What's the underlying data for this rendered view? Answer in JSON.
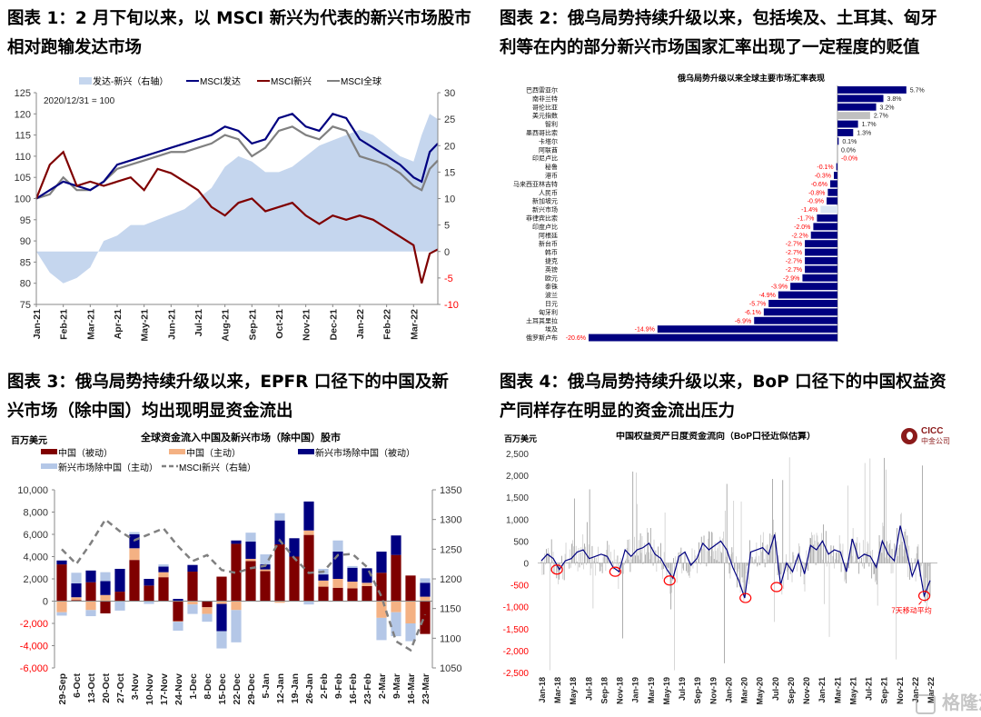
{
  "panels": {
    "p1": {
      "title_line1": "图表 1：2 月下旬以来，以 MSCI 新兴为代表的新兴市场股市",
      "title_line2": "相对跑输发达市场"
    },
    "p2": {
      "title_line1": "图表 2：俄乌局势持续升级以来，包括埃及、土耳其、匈牙",
      "title_line2": "利等在内的部分新兴市场国家汇率出现了一定程度的贬值"
    },
    "p3": {
      "title_line1": "图表 3：俄乌局势持续升级以来，EPFR 口径下的中国及新",
      "title_line2": "兴市场（除中国）均出现明显资金流出"
    },
    "p4": {
      "title_line1": "图表 4：俄乌局势持续升级以来，BoP 口径下的中国权益资",
      "title_line2": "产同样存在明显的资金流出压力"
    }
  },
  "logo": {
    "text_en": "CICC",
    "text_cn": "中金公司"
  },
  "watermark": "格隆汇",
  "colors": {
    "navy": "#000080",
    "darkred": "#7f0000",
    "gray": "#808080",
    "lightblue": "#c5d6ee",
    "salmon": "#f4b183",
    "paleblue": "#b4c7e7",
    "red": "#ff0000"
  },
  "chart_data": [
    {
      "type": "line",
      "title": "",
      "annotation": "2020/12/31 = 100",
      "legend": [
        "发达-新兴（右轴）",
        "MSCI发达",
        "MSCI新兴",
        "MSCI全球"
      ],
      "x_ticks": [
        "Jan-21",
        "Feb-21",
        "Mar-21",
        "Apr-21",
        "May-21",
        "Jun-21",
        "Jul-21",
        "Aug-21",
        "Sep-21",
        "Oct-21",
        "Nov-21",
        "Dec-21",
        "Jan-22",
        "Feb-22",
        "Mar-22"
      ],
      "ylim": [
        75,
        125
      ],
      "y_ticks": [
        75,
        80,
        85,
        90,
        95,
        100,
        105,
        110,
        115,
        120,
        125
      ],
      "y2lim": [
        -10,
        30
      ],
      "y2_ticks": [
        -10,
        -5,
        0,
        5,
        10,
        15,
        20,
        25,
        30
      ],
      "x": [
        0,
        0.5,
        1,
        1.5,
        2,
        2.5,
        3,
        3.5,
        4,
        4.5,
        5,
        5.5,
        6,
        6.5,
        7,
        7.5,
        8,
        8.5,
        9,
        9.5,
        10,
        10.5,
        11,
        11.5,
        12,
        12.5,
        13,
        13.5,
        14,
        14.3,
        14.6,
        14.9
      ],
      "series": [
        {
          "name": "发达-新兴（右轴）",
          "axis": "right",
          "values": [
            0,
            -4,
            -6,
            -5,
            -3,
            2,
            3,
            5,
            5,
            6,
            7,
            8,
            10,
            12,
            16,
            18,
            17,
            15,
            15,
            16,
            18,
            20,
            21,
            22,
            23,
            22,
            20,
            18,
            17,
            22,
            26,
            25
          ]
        },
        {
          "name": "MSCI发达",
          "axis": "left",
          "values": [
            100,
            102,
            104,
            103,
            102,
            104,
            108,
            109,
            110,
            111,
            112,
            113,
            114,
            115,
            117,
            116,
            113,
            114,
            119,
            120,
            117,
            116,
            120,
            119,
            114,
            112,
            110,
            108,
            105,
            104,
            111,
            113
          ]
        },
        {
          "name": "MSCI新兴",
          "axis": "left",
          "values": [
            100,
            108,
            111,
            103,
            104,
            103,
            104,
            105,
            102,
            107,
            106,
            104,
            102,
            98,
            96,
            99,
            100,
            97,
            98,
            99,
            96,
            94,
            96,
            95,
            96,
            95,
            93,
            91,
            89,
            80,
            87,
            88
          ]
        },
        {
          "name": "MSCI全球",
          "axis": "left",
          "values": [
            100,
            101,
            105,
            102,
            102,
            104,
            107,
            108,
            109,
            110,
            111,
            111,
            112,
            113,
            115,
            114,
            110,
            112,
            116,
            117,
            115,
            114,
            117,
            116,
            110,
            109,
            108,
            106,
            103,
            102,
            107,
            109
          ]
        }
      ]
    },
    {
      "type": "bar",
      "orientation": "horizontal",
      "title": "俄乌局势升级以来全球主要市场汇率表现",
      "categories": [
        "巴西雷亚尔",
        "南非兰特",
        "哥伦比亚",
        "美元指数",
        "智利",
        "墨西哥比索",
        "卡塔尔",
        "阿联酋",
        "印尼卢比",
        "秘鲁",
        "港币",
        "马来西亚林吉特",
        "人民币",
        "新加坡元",
        "新兴市场",
        "菲律宾比索",
        "印度卢比",
        "阿根廷",
        "新台币",
        "韩币",
        "捷克",
        "英镑",
        "欧元",
        "泰铢",
        "波兰",
        "日元",
        "匈牙利",
        "土耳其里拉",
        "埃及",
        "俄罗斯卢布"
      ],
      "values": [
        5.7,
        3.8,
        3.2,
        2.7,
        1.7,
        1.3,
        0.1,
        0.0,
        -0.0,
        -0.1,
        -0.3,
        -0.6,
        -0.8,
        -0.9,
        -1.4,
        -1.7,
        -2.0,
        -2.2,
        -2.7,
        -2.7,
        -2.7,
        -2.7,
        -2.9,
        -3.9,
        -4.9,
        -5.7,
        -6.1,
        -6.9,
        -14.9,
        -20.6
      ],
      "labels": [
        "5.7%",
        "3.8%",
        "3.2%",
        "2.7%",
        "1.7%",
        "1.3%",
        "0.1%",
        "0.0%",
        "-0.0%",
        "-0.1%",
        "-0.3%",
        "-0.6%",
        "-0.8%",
        "-0.9%",
        "-1.4%",
        "-1.7%",
        "-2.0%",
        "-2.2%",
        "-2.7%",
        "-2.7%",
        "-2.7%",
        "-2.7%",
        "-2.9%",
        "-3.9%",
        "-4.9%",
        "-5.7%",
        "-6.1%",
        "-6.9%",
        "-14.9%",
        "-20.6%"
      ],
      "highlight": {
        "美元指数": "#c0c0c0",
        "新兴市场": "#dce6f2"
      },
      "xlim": [
        -21,
        6
      ]
    },
    {
      "type": "bar",
      "stacked": true,
      "title": "全球资金流入中国及新兴市场（除中国）股市",
      "ylabel": "百万美元",
      "categories": [
        "29-Sep",
        "6-Oct",
        "13-Oct",
        "20-Oct",
        "27-Oct",
        "3-Nov",
        "10-Nov",
        "17-Nov",
        "24-Nov",
        "1-Dec",
        "8-Dec",
        "15-Dec",
        "22-Dec",
        "29-Dec",
        "5-Jan",
        "12-Jan",
        "19-Jan",
        "26-Jan",
        "2-Feb",
        "9-Feb",
        "16-Feb",
        "23-Feb",
        "2-Mar",
        "9-Mar",
        "16-Mar",
        "23-Mar"
      ],
      "ylim": [
        -6000,
        10000
      ],
      "y_ticks": [
        "10,000",
        "8,000",
        "6,000",
        "4,000",
        "2,000",
        "0",
        "-2,000",
        "-4,000",
        "-6,000"
      ],
      "y_tick_values": [
        10000,
        8000,
        6000,
        4000,
        2000,
        0,
        -2000,
        -4000,
        -6000
      ],
      "y2lim": [
        1050,
        1350
      ],
      "y2_ticks": [
        1350,
        1300,
        1250,
        1200,
        1150,
        1100,
        1050
      ],
      "legend": [
        "中国（被动）",
        "中国（主动）",
        "新兴市场除中国（被动）",
        "新兴市场除中国（主动）",
        "MSCI新兴（右轴）"
      ],
      "series": [
        {
          "name": "中国（被动）",
          "values": [
            3300,
            100,
            1700,
            -1100,
            850,
            3700,
            1400,
            2150,
            -1800,
            2650,
            -550,
            2200,
            5150,
            3600,
            2700,
            5100,
            4000,
            5950,
            1300,
            1200,
            1150,
            1350,
            2550,
            4150,
            2300,
            -2950
          ]
        },
        {
          "name": "中国（主动）",
          "values": [
            -1000,
            250,
            -800,
            550,
            0,
            1050,
            0,
            450,
            -50,
            -300,
            -600,
            -250,
            -800,
            200,
            150,
            -150,
            0,
            400,
            550,
            800,
            600,
            300,
            -1500,
            -1000,
            -2000,
            400
          ]
        },
        {
          "name": "新兴市场除中国（被动）",
          "values": [
            350,
            1250,
            1050,
            1250,
            2050,
            1250,
            600,
            500,
            200,
            600,
            0,
            -2450,
            300,
            1550,
            450,
            2150,
            1650,
            2600,
            550,
            2450,
            1250,
            1300,
            1900,
            1750,
            0,
            1250
          ]
        },
        {
          "name": "新兴市场除中国（主动）",
          "values": [
            -300,
            950,
            -550,
            800,
            -850,
            200,
            -250,
            200,
            -800,
            -850,
            -700,
            -1550,
            -2900,
            800,
            900,
            650,
            0,
            -300,
            500,
            1000,
            150,
            0,
            -2000,
            -2150,
            -1600,
            400
          ]
        },
        {
          "name": "MSCI新兴（右轴）",
          "axis": "right",
          "values": [
            1250,
            1225,
            1260,
            1300,
            1280,
            1265,
            1275,
            1285,
            1255,
            1230,
            1240,
            1215,
            1210,
            1218,
            1222,
            1265,
            1235,
            1210,
            1212,
            1240,
            1242,
            1220,
            1170,
            1095,
            1080,
            1140
          ]
        }
      ]
    },
    {
      "type": "bar",
      "title": "中国权益资产日度资金流向（BoP口径近似估算）",
      "ylabel": "百万美元",
      "ylim": [
        -2500,
        2500
      ],
      "y_ticks": [
        "2,500",
        "2,000",
        "1,500",
        "1,000",
        "500",
        "0",
        "-500",
        "-1,000",
        "-1,500",
        "-2,000",
        "-2,500"
      ],
      "y_tick_values": [
        2500,
        2000,
        1500,
        1000,
        500,
        0,
        -500,
        -1000,
        -1500,
        -2000,
        -2500
      ],
      "x_ticks": [
        "Jan-18",
        "Mar-18",
        "May-18",
        "Jul-18",
        "Sep-18",
        "Nov-18",
        "Jan-19",
        "Mar-19",
        "May-19",
        "Jul-19",
        "Sep-19",
        "Nov-19",
        "Jan-20",
        "Mar-20",
        "May-20",
        "Jul-20",
        "Sep-20",
        "Nov-20",
        "Jan-21",
        "Mar-21",
        "May-21",
        "Jul-21",
        "Sep-21",
        "Nov-21",
        "Jan-22",
        "Mar-22"
      ],
      "annotation": "7天移动平均",
      "moving_average": [
        50,
        200,
        100,
        -150,
        50,
        100,
        250,
        300,
        100,
        150,
        200,
        150,
        -100,
        -200,
        300,
        150,
        300,
        350,
        450,
        200,
        100,
        -150,
        -350,
        150,
        250,
        -50,
        100,
        450,
        300,
        400,
        500,
        300,
        -100,
        -400,
        -800,
        250,
        300,
        350,
        200,
        650,
        -500,
        0,
        -200,
        200,
        -250,
        400,
        300,
        500,
        200,
        300,
        250,
        -200,
        550,
        100,
        200,
        150,
        -100,
        500,
        200,
        50,
        850,
        300,
        -300,
        50,
        -750,
        -400
      ],
      "circled_dips": [
        -150,
        -200,
        -400,
        -800,
        -550,
        -750
      ]
    }
  ]
}
